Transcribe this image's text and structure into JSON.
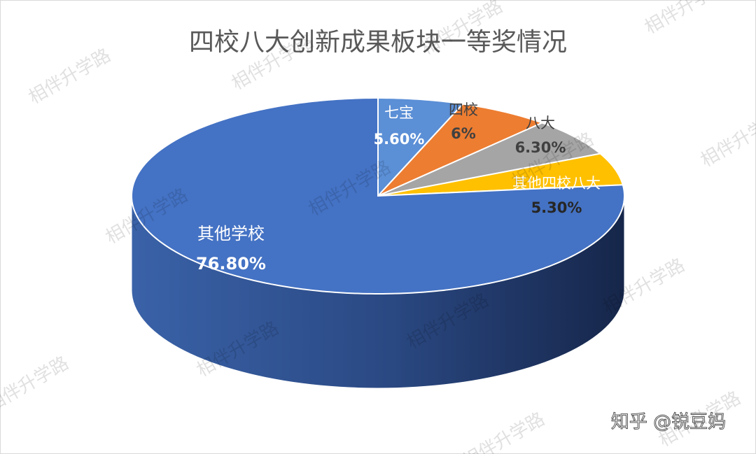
{
  "chart_data": {
    "type": "pie",
    "title": "四校八大创新成果板块一等奖情况",
    "categories": [
      "七宝",
      "四校",
      "八大",
      "其他四校八大",
      "其他学校"
    ],
    "values": [
      5.6,
      6,
      6.3,
      5.3,
      76.8
    ],
    "value_labels": [
      "5.60%",
      "6%",
      "6.30%",
      "5.30%",
      "76.80%"
    ],
    "colors": [
      "#5b8fd6",
      "#ed7d31",
      "#a5a5a5",
      "#ffc000",
      "#4472c4"
    ],
    "watermark": "相伴升学路",
    "credit": "知乎 @锐豆妈"
  }
}
